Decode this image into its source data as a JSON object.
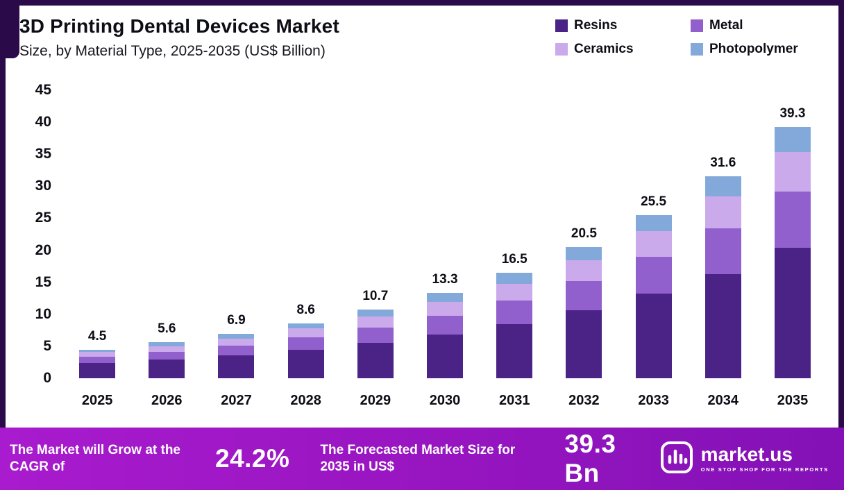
{
  "header": {
    "title": "3D Printing Dental Devices Market",
    "subtitle": "Size, by Material Type, 2025-2035 (US$ Billion)"
  },
  "chart_data": {
    "type": "bar",
    "stacked": true,
    "title": "3D Printing Dental Devices Market Size, by Material Type, 2025-2035 (US$ Billion)",
    "categories": [
      "2025",
      "2026",
      "2027",
      "2028",
      "2029",
      "2030",
      "2031",
      "2032",
      "2033",
      "2034",
      "2035"
    ],
    "series": [
      {
        "name": "Resins",
        "color": "#4b2386",
        "values": [
          2.4,
          2.9,
          3.6,
          4.5,
          5.5,
          6.8,
          8.5,
          10.6,
          13.2,
          16.3,
          20.4
        ]
      },
      {
        "name": "Metal",
        "color": "#9260cd",
        "values": [
          1.0,
          1.2,
          1.5,
          1.9,
          2.4,
          3.0,
          3.7,
          4.6,
          5.8,
          7.1,
          8.8
        ]
      },
      {
        "name": "Ceramics",
        "color": "#cbaaec",
        "values": [
          0.7,
          0.9,
          1.1,
          1.4,
          1.7,
          2.1,
          2.6,
          3.2,
          4.0,
          5.0,
          6.2
        ]
      },
      {
        "name": "Photopolymer",
        "color": "#83a9da",
        "values": [
          0.4,
          0.6,
          0.7,
          0.8,
          1.1,
          1.4,
          1.7,
          2.1,
          2.5,
          3.2,
          3.9
        ]
      }
    ],
    "totals": [
      4.5,
      5.6,
      6.9,
      8.6,
      10.7,
      13.3,
      16.5,
      20.5,
      25.5,
      31.6,
      39.3
    ],
    "xlabel": "",
    "ylabel": "",
    "ylim": [
      0,
      45
    ],
    "ytick_step": 5,
    "grid": false,
    "legend_position": "top-right"
  },
  "footer": {
    "cagr_label": "The Market will Grow at the CAGR of",
    "cagr_value": "24.2%",
    "forecast_label": "The Forecasted Market Size for 2035 in US$",
    "forecast_value": "39.3 Bn",
    "brand_name": "market.us",
    "brand_tagline": "ONE STOP SHOP FOR THE REPORTS"
  },
  "colors": {
    "frame": "#2a0a49",
    "footer_gradient_start": "#a81bce",
    "footer_gradient_end": "#8311b6"
  }
}
